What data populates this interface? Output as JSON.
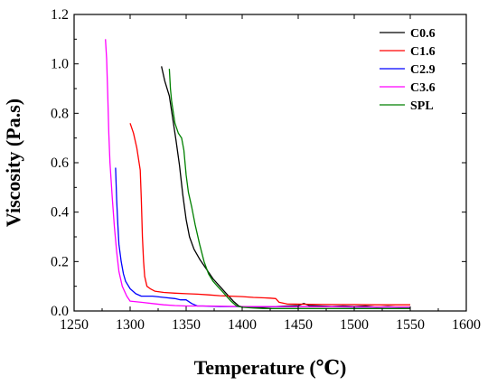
{
  "chart_data": {
    "type": "line",
    "title": "",
    "xlabel": "Temperature (℃)",
    "ylabel": "Viscosity (Pa.s)",
    "xlim": [
      1250,
      1600
    ],
    "ylim": [
      0,
      1.2
    ],
    "xticks": [
      "1250",
      "1300",
      "1350",
      "1400",
      "1450",
      "1500",
      "1550",
      "1600"
    ],
    "yticks": [
      "0.0",
      "0.2",
      "0.4",
      "0.6",
      "0.8",
      "1.0",
      "1.2"
    ],
    "grid": false,
    "legend_position": "top-right",
    "series": [
      {
        "name": "C0.6",
        "color": "#000000",
        "x": [
          1328,
          1331,
          1335,
          1338,
          1341,
          1344,
          1347,
          1350,
          1353,
          1357,
          1362,
          1368,
          1374,
          1380,
          1386,
          1392,
          1397,
          1402,
          1410,
          1420,
          1430,
          1440,
          1450,
          1455,
          1460,
          1470,
          1480,
          1490,
          1500,
          1510,
          1520,
          1530,
          1540,
          1550
        ],
        "y": [
          0.99,
          0.93,
          0.87,
          0.78,
          0.69,
          0.59,
          0.47,
          0.37,
          0.3,
          0.25,
          0.21,
          0.17,
          0.13,
          0.1,
          0.07,
          0.04,
          0.02,
          0.015,
          0.015,
          0.015,
          0.018,
          0.02,
          0.022,
          0.03,
          0.022,
          0.02,
          0.018,
          0.02,
          0.018,
          0.02,
          0.015,
          0.018,
          0.015,
          0.015
        ]
      },
      {
        "name": "C1.6",
        "color": "#ff0000",
        "x": [
          1300,
          1303,
          1306,
          1309,
          1310,
          1311,
          1312,
          1313,
          1315,
          1318,
          1322,
          1330,
          1340,
          1350,
          1360,
          1370,
          1380,
          1390,
          1400,
          1410,
          1420,
          1425,
          1430,
          1433,
          1440,
          1460,
          1480,
          1500,
          1520,
          1540,
          1550
        ],
        "y": [
          0.76,
          0.72,
          0.66,
          0.57,
          0.45,
          0.3,
          0.2,
          0.14,
          0.1,
          0.09,
          0.08,
          0.075,
          0.072,
          0.07,
          0.068,
          0.065,
          0.062,
          0.06,
          0.058,
          0.055,
          0.053,
          0.052,
          0.05,
          0.035,
          0.028,
          0.027,
          0.026,
          0.026,
          0.025,
          0.025,
          0.025
        ]
      },
      {
        "name": "C2.9",
        "color": "#0000ff",
        "x": [
          1287,
          1288,
          1289,
          1290,
          1292,
          1294,
          1296,
          1300,
          1305,
          1310,
          1320,
          1330,
          1340,
          1345,
          1350,
          1355,
          1360,
          1365,
          1380,
          1400,
          1420,
          1440,
          1460,
          1480,
          1500,
          1520,
          1540,
          1550
        ],
        "y": [
          0.58,
          0.45,
          0.35,
          0.27,
          0.2,
          0.15,
          0.12,
          0.09,
          0.07,
          0.06,
          0.06,
          0.055,
          0.05,
          0.045,
          0.045,
          0.03,
          0.02,
          0.02,
          0.018,
          0.018,
          0.018,
          0.017,
          0.017,
          0.017,
          0.016,
          0.016,
          0.016,
          0.016
        ]
      },
      {
        "name": "C3.6",
        "color": "#ff00ff",
        "x": [
          1278,
          1279,
          1280,
          1281,
          1282,
          1284,
          1286,
          1288,
          1290,
          1293,
          1297,
          1300,
          1310,
          1320,
          1330,
          1340,
          1350,
          1370,
          1400,
          1430,
          1460,
          1490,
          1520,
          1550
        ],
        "y": [
          1.1,
          1.02,
          0.88,
          0.72,
          0.6,
          0.46,
          0.34,
          0.24,
          0.16,
          0.1,
          0.06,
          0.04,
          0.035,
          0.03,
          0.025,
          0.022,
          0.02,
          0.02,
          0.018,
          0.018,
          0.017,
          0.017,
          0.016,
          0.016
        ]
      },
      {
        "name": "SPL",
        "color": "#008000",
        "x": [
          1335,
          1336,
          1337,
          1338,
          1340,
          1343,
          1346,
          1348,
          1350,
          1352,
          1355,
          1358,
          1362,
          1366,
          1370,
          1374,
          1378,
          1382,
          1386,
          1390,
          1395,
          1400,
          1410,
          1420,
          1440,
          1460,
          1480,
          1500,
          1520,
          1540,
          1550
        ],
        "y": [
          0.98,
          0.9,
          0.85,
          0.82,
          0.76,
          0.72,
          0.7,
          0.65,
          0.55,
          0.48,
          0.42,
          0.35,
          0.27,
          0.2,
          0.15,
          0.12,
          0.1,
          0.08,
          0.06,
          0.04,
          0.02,
          0.015,
          0.012,
          0.01,
          0.01,
          0.01,
          0.01,
          0.01,
          0.01,
          0.01,
          0.01
        ]
      }
    ]
  }
}
